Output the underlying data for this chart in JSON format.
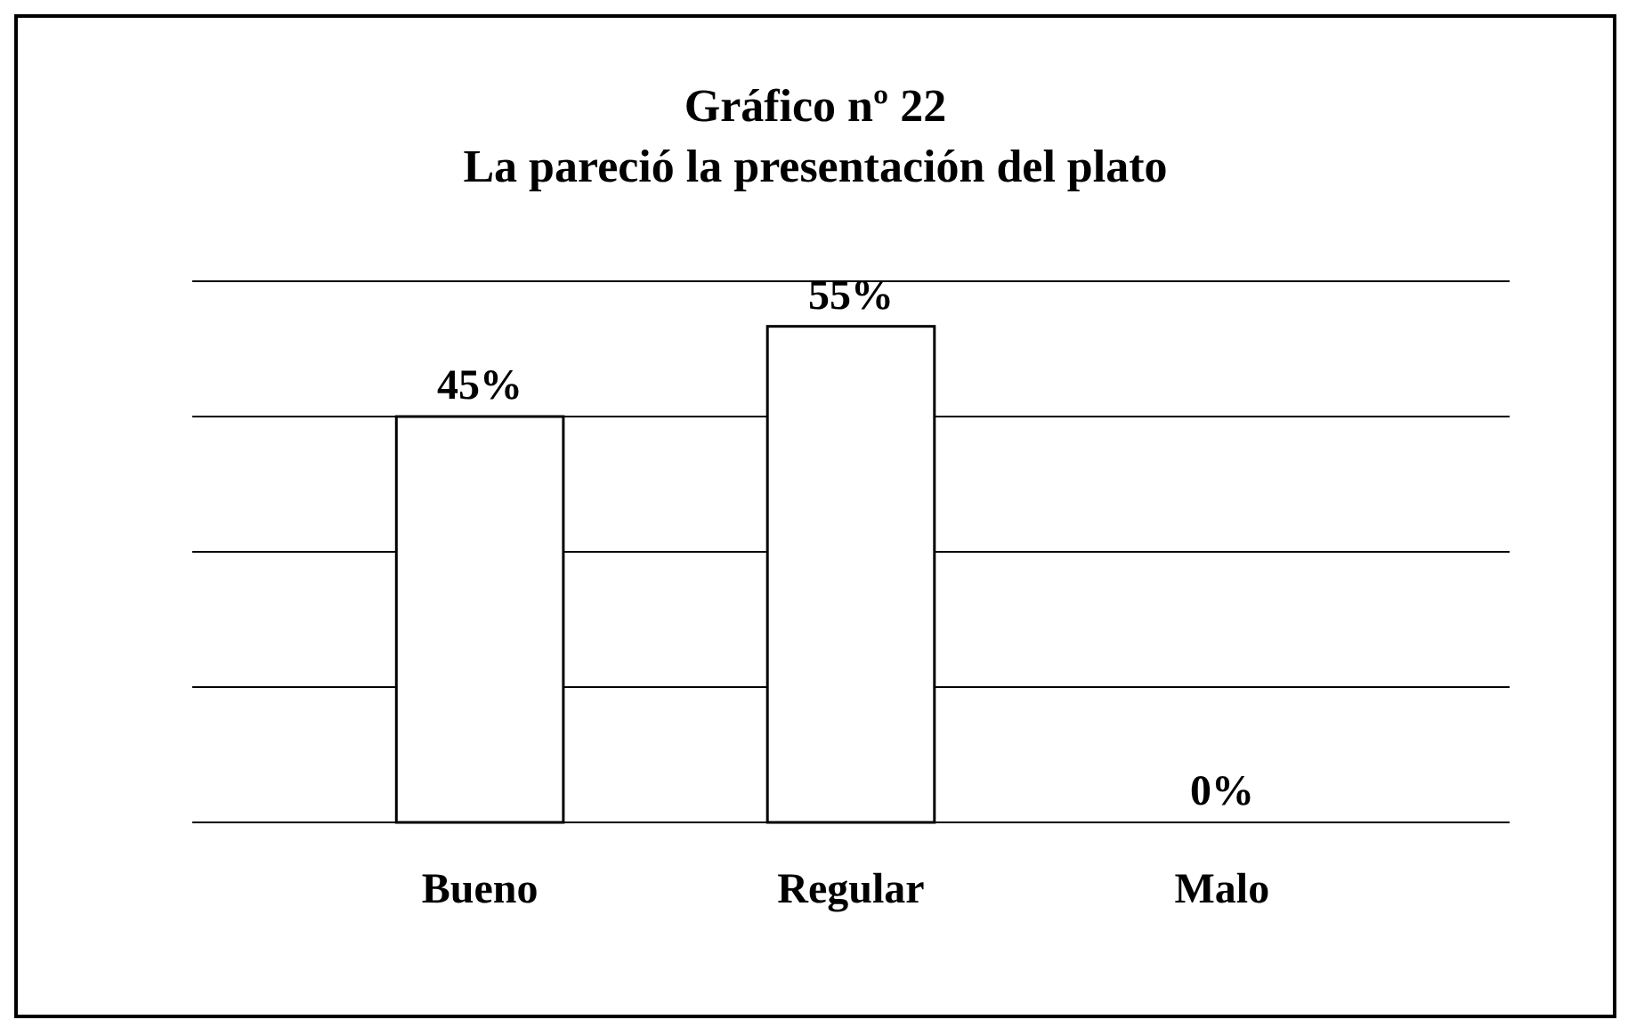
{
  "chart_data": {
    "type": "bar",
    "title": "Gráfico nº 22\nLa pareció la presentación del plato",
    "categories": [
      "Bueno",
      "Regular",
      "Malo"
    ],
    "values": [
      45,
      55,
      0
    ],
    "color": "#ffffff",
    "value_labels": [
      "45%",
      "55%",
      "0%"
    ],
    "ylim": [
      0,
      60
    ],
    "yticks": [
      {
        "value": 0,
        "label": null
      },
      {
        "value": 15,
        "label": null
      },
      {
        "value": 30,
        "label": null
      },
      {
        "value": 45,
        "label": null
      },
      {
        "value": 60,
        "label": null
      }
    ],
    "tick_labels": "x",
    "grid": "y"
  }
}
